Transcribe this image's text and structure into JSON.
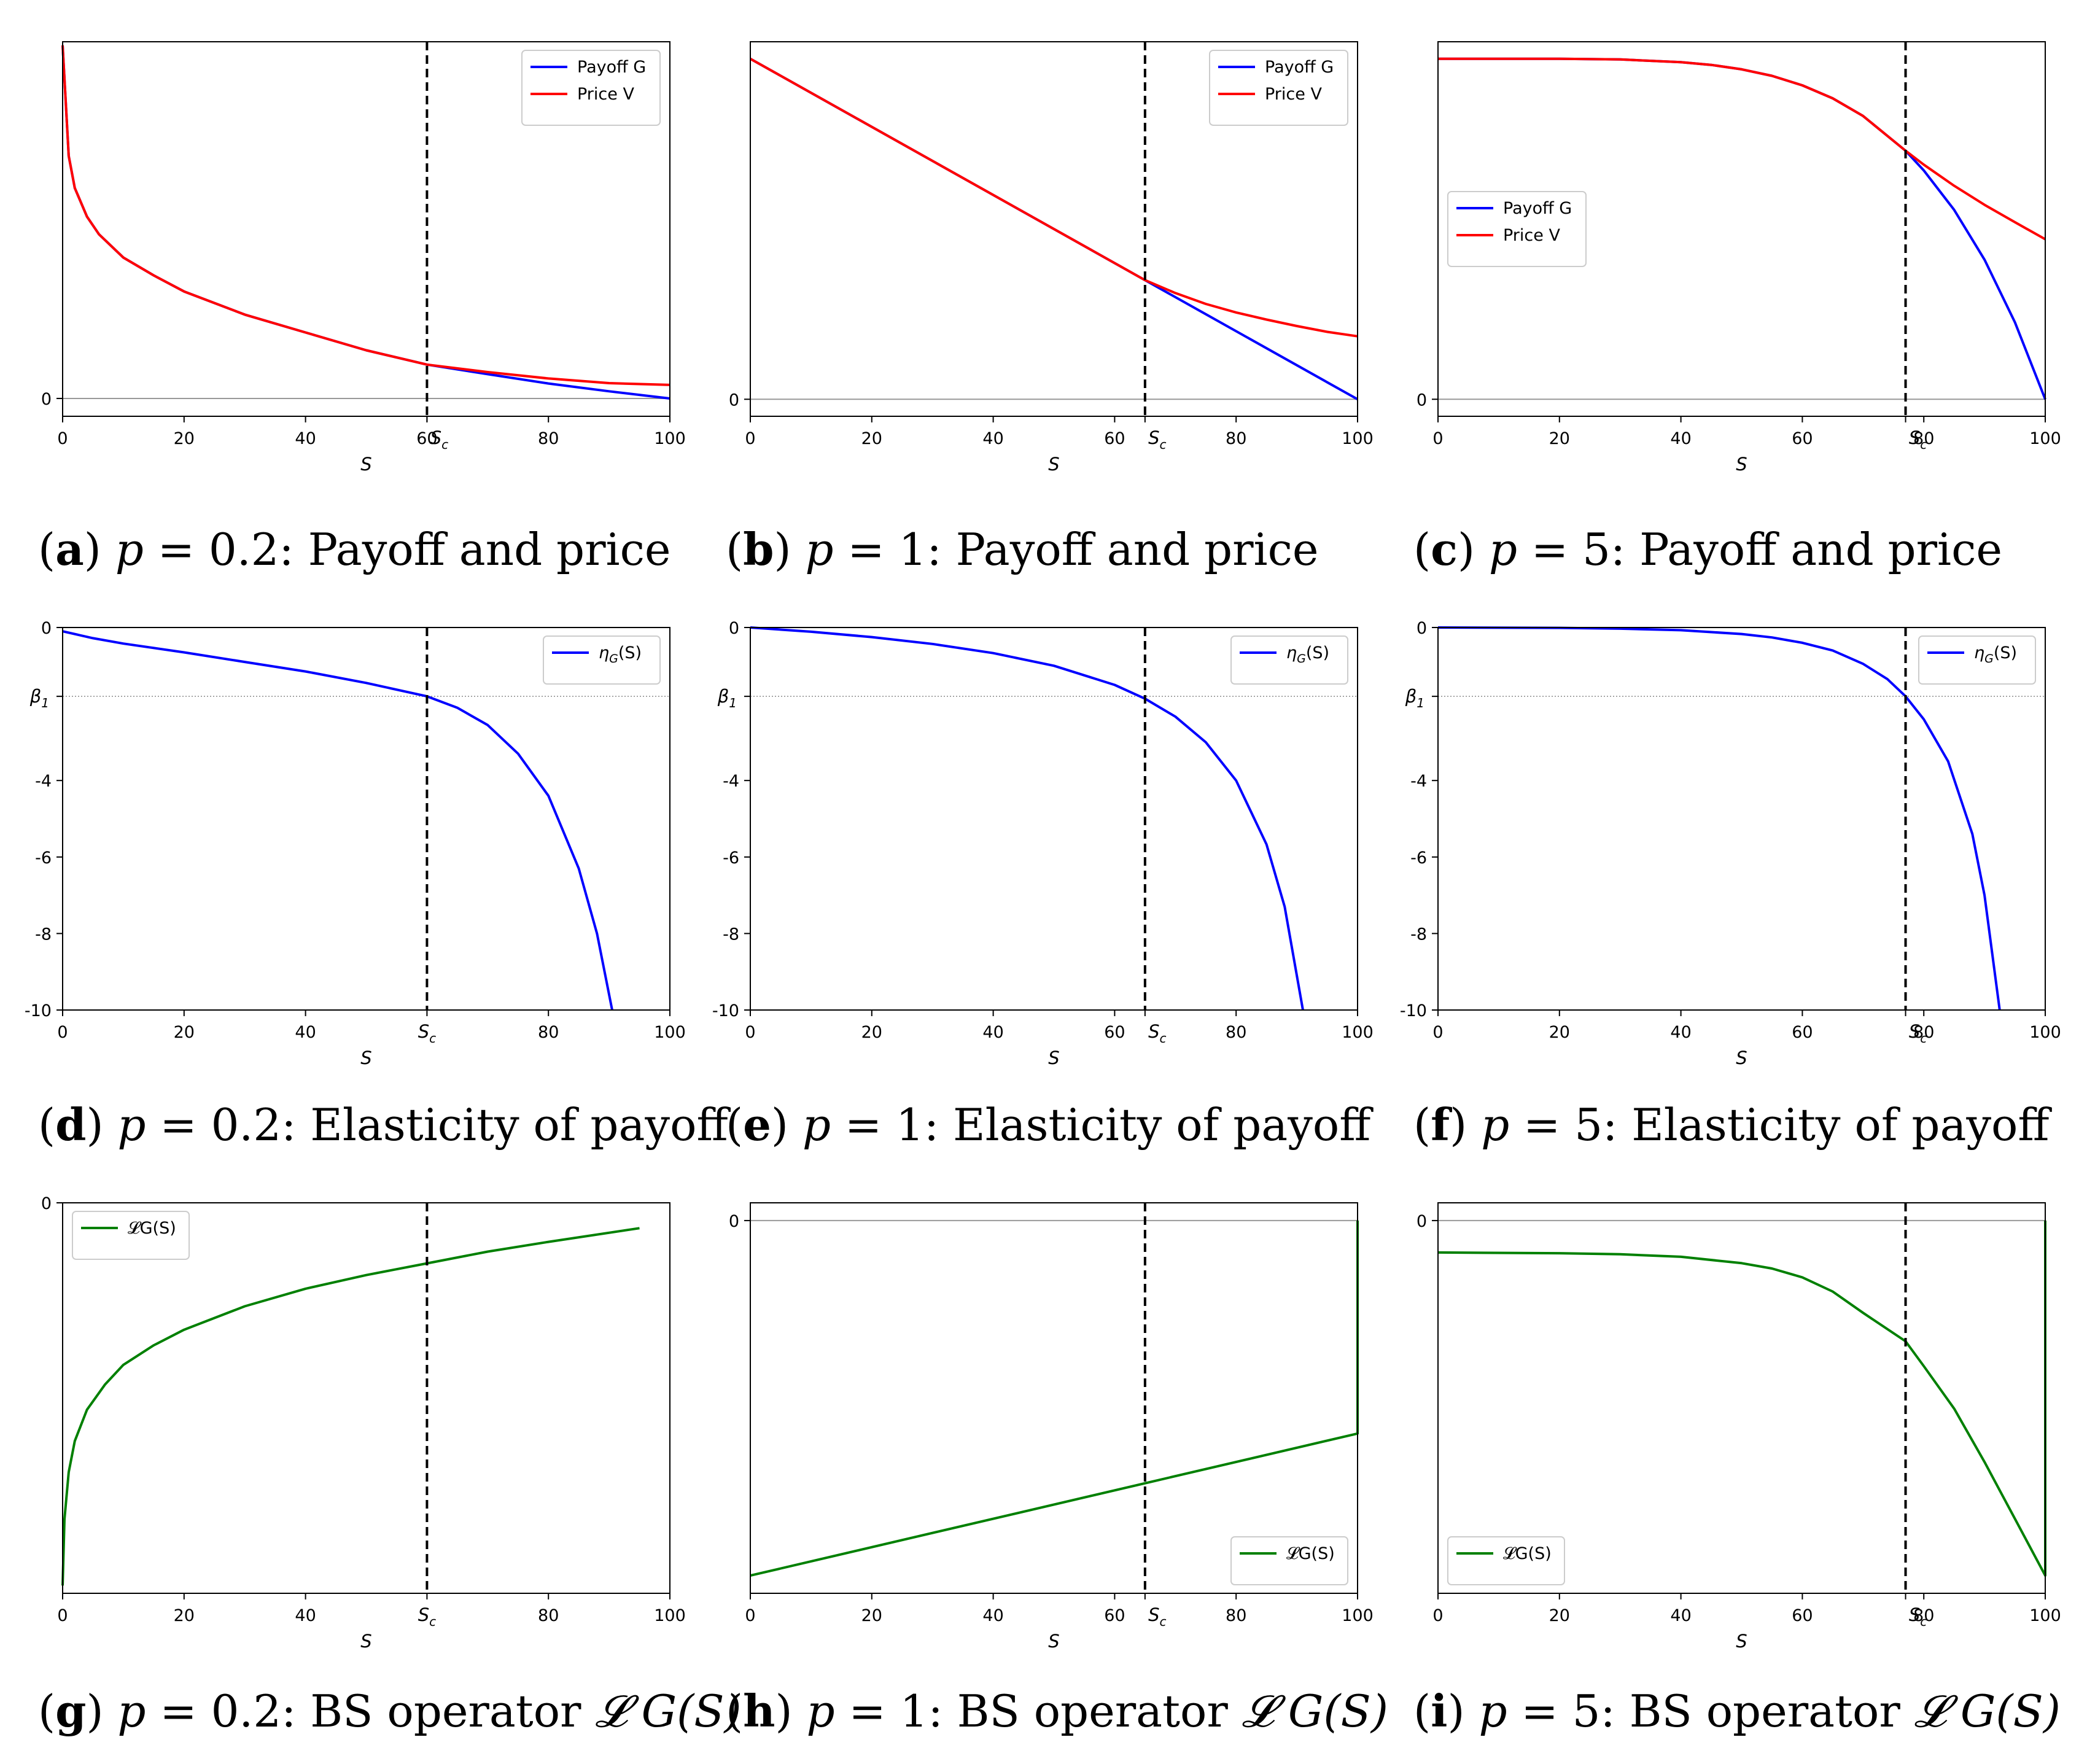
{
  "chart_data": [
    {
      "id": "a",
      "type": "line",
      "caption": {
        "letter": "a",
        "p": "0.2",
        "title": "Payoff and price"
      },
      "xlabel": "S",
      "xlim": [
        0,
        100
      ],
      "xticks": [
        "0",
        "20",
        "40",
        "60",
        "80",
        "100"
      ],
      "critical_label": "S_c",
      "critical_x": 60,
      "ylim": [
        -0.5,
        10
      ],
      "yticks": [
        {
          "label": "0",
          "value": 0
        }
      ],
      "hline": 0,
      "legend_loc": "upper right",
      "series": [
        {
          "name": "Payoff G",
          "color": "#0000ff",
          "x": [
            0,
            1,
            2,
            4,
            6,
            10,
            15,
            20,
            30,
            40,
            50,
            60,
            70,
            80,
            90,
            100
          ],
          "y": [
            9.9,
            6.8,
            5.9,
            5.1,
            4.6,
            3.95,
            3.45,
            3.0,
            2.35,
            1.85,
            1.35,
            0.95,
            0.68,
            0.42,
            0.2,
            0.0
          ]
        },
        {
          "name": "Price V",
          "color": "#ff0000",
          "x": [
            0,
            1,
            2,
            4,
            6,
            10,
            15,
            20,
            30,
            40,
            50,
            60,
            70,
            80,
            90,
            100
          ],
          "y": [
            9.9,
            6.8,
            5.9,
            5.1,
            4.6,
            3.95,
            3.45,
            3.0,
            2.35,
            1.85,
            1.35,
            0.95,
            0.74,
            0.56,
            0.43,
            0.38
          ]
        }
      ]
    },
    {
      "id": "b",
      "type": "line",
      "caption": {
        "letter": "b",
        "p": "1",
        "title": "Payoff and price"
      },
      "xlabel": "S",
      "xlim": [
        0,
        100
      ],
      "xticks": [
        "0",
        "20",
        "40",
        "60",
        "80",
        "100"
      ],
      "critical_label": "S_c",
      "critical_x": 65,
      "ylim": [
        -5,
        105
      ],
      "yticks": [
        {
          "label": "0",
          "value": 0
        }
      ],
      "hline": 0,
      "legend_loc": "upper right",
      "series": [
        {
          "name": "Payoff G",
          "color": "#0000ff",
          "x": [
            0,
            65,
            100
          ],
          "y": [
            100,
            35,
            0
          ]
        },
        {
          "name": "Price V",
          "color": "#ff0000",
          "x": [
            0,
            20,
            40,
            65,
            70,
            75,
            80,
            85,
            90,
            95,
            100
          ],
          "y": [
            100,
            80,
            60,
            35,
            31.2,
            28.0,
            25.5,
            23.4,
            21.5,
            19.8,
            18.5
          ]
        }
      ]
    },
    {
      "id": "c",
      "type": "line",
      "caption": {
        "letter": "c",
        "p": "5",
        "title": "Payoff and price"
      },
      "xlabel": "S",
      "xlim": [
        0,
        100
      ],
      "xticks": [
        "0",
        "20",
        "40",
        "60",
        "80",
        "100"
      ],
      "critical_label": "S_c",
      "critical_x": 77,
      "ylim": [
        -0.05,
        1.05
      ],
      "yticks": [
        {
          "label": "0",
          "value": 0
        }
      ],
      "hline": 0,
      "legend_loc": "center left",
      "series": [
        {
          "name": "Payoff G",
          "color": "#0000ff",
          "x": [
            0,
            10,
            20,
            30,
            40,
            45,
            50,
            55,
            60,
            65,
            70,
            77,
            80,
            85,
            90,
            95,
            100
          ],
          "y": [
            1.0,
            1.0,
            1.0,
            0.998,
            0.99,
            0.982,
            0.969,
            0.95,
            0.922,
            0.884,
            0.832,
            0.73,
            0.672,
            0.556,
            0.41,
            0.226,
            0.0
          ]
        },
        {
          "name": "Price V",
          "color": "#ff0000",
          "x": [
            0,
            10,
            20,
            30,
            40,
            45,
            50,
            55,
            60,
            65,
            70,
            77,
            80,
            85,
            90,
            95,
            100
          ],
          "y": [
            1.0,
            1.0,
            1.0,
            0.998,
            0.99,
            0.982,
            0.969,
            0.95,
            0.922,
            0.884,
            0.832,
            0.73,
            0.689,
            0.627,
            0.571,
            0.52,
            0.47
          ]
        }
      ]
    },
    {
      "id": "d",
      "type": "line",
      "caption": {
        "letter": "d",
        "p": "0.2",
        "title": "Elasticity of payoff"
      },
      "xlabel": "S",
      "xlim": [
        0,
        100
      ],
      "xticks": [
        "0",
        "20",
        "40",
        "S_c",
        "80",
        "100"
      ],
      "critical_label": "S_c",
      "critical_x": 60,
      "ylim": [
        -10,
        0
      ],
      "yticks": [
        {
          "label": "0",
          "value": 0
        },
        {
          "label": "β_1",
          "value": -1.8
        },
        {
          "label": "-4",
          "value": -4
        },
        {
          "label": "-6",
          "value": -6
        },
        {
          "label": "-8",
          "value": -8
        },
        {
          "label": "-10",
          "value": -10
        }
      ],
      "hline_dotted": -1.8,
      "legend_loc": "upper right",
      "series": [
        {
          "name": "η_G(S)",
          "color": "#0000ff",
          "x": [
            0,
            5,
            10,
            20,
            30,
            40,
            50,
            60,
            65,
            70,
            75,
            80,
            85,
            88,
            90.5
          ],
          "y": [
            -0.1,
            -0.28,
            -0.42,
            -0.65,
            -0.9,
            -1.15,
            -1.45,
            -1.8,
            -2.1,
            -2.55,
            -3.3,
            -4.4,
            -6.3,
            -8.0,
            -10.0
          ]
        }
      ]
    },
    {
      "id": "e",
      "type": "line",
      "caption": {
        "letter": "e",
        "p": "1",
        "title": "Elasticity of payoff"
      },
      "xlabel": "S",
      "xlim": [
        0,
        100
      ],
      "xticks": [
        "0",
        "20",
        "40",
        "60",
        "80",
        "100"
      ],
      "critical_label": "S_c",
      "critical_x": 65,
      "ylim": [
        -10,
        0
      ],
      "yticks": [
        {
          "label": "0",
          "value": 0
        },
        {
          "label": "β_1",
          "value": -1.8
        },
        {
          "label": "-4",
          "value": -4
        },
        {
          "label": "-6",
          "value": -6
        },
        {
          "label": "-8",
          "value": -8
        },
        {
          "label": "-10",
          "value": -10
        }
      ],
      "hline_dotted": -1.8,
      "legend_loc": "upper right",
      "series": [
        {
          "name": "η_G(S)",
          "color": "#0000ff",
          "x": [
            0,
            10,
            20,
            30,
            40,
            50,
            60,
            65,
            70,
            75,
            80,
            85,
            88,
            91
          ],
          "y": [
            0,
            -0.11,
            -0.25,
            -0.43,
            -0.67,
            -1.0,
            -1.5,
            -1.86,
            -2.33,
            -3.0,
            -4.0,
            -5.67,
            -7.3,
            -10.0
          ]
        }
      ]
    },
    {
      "id": "f",
      "type": "line",
      "caption": {
        "letter": "f",
        "p": "5",
        "title": "Elasticity of payoff"
      },
      "xlabel": "S",
      "xlim": [
        0,
        100
      ],
      "xticks": [
        "0",
        "20",
        "40",
        "60",
        "80",
        "100"
      ],
      "critical_label": "S_c",
      "critical_x": 77,
      "ylim": [
        -10,
        0
      ],
      "yticks": [
        {
          "label": "0",
          "value": 0
        },
        {
          "label": "β_1",
          "value": -1.8
        },
        {
          "label": "-4",
          "value": -4
        },
        {
          "label": "-6",
          "value": -6
        },
        {
          "label": "-8",
          "value": -8
        },
        {
          "label": "-10",
          "value": -10
        }
      ],
      "hline_dotted": -1.8,
      "legend_loc": "upper right",
      "series": [
        {
          "name": "η_G(S)",
          "color": "#0000ff",
          "x": [
            0,
            20,
            30,
            40,
            50,
            55,
            60,
            65,
            70,
            74,
            77,
            80,
            84,
            88,
            90,
            92.5
          ],
          "y": [
            0,
            -0.01,
            -0.03,
            -0.07,
            -0.17,
            -0.26,
            -0.4,
            -0.6,
            -0.95,
            -1.35,
            -1.8,
            -2.4,
            -3.5,
            -5.4,
            -7.0,
            -10.0
          ]
        }
      ]
    },
    {
      "id": "g",
      "type": "line",
      "caption": {
        "letter": "g",
        "p": "0.2",
        "title": "BS operator",
        "op": "𝓛 G(S)"
      },
      "xlabel": "S",
      "xlim": [
        0,
        100
      ],
      "xticks": [
        "0",
        "20",
        "40",
        "S_c",
        "80",
        "100"
      ],
      "critical_label": "S_c",
      "critical_x": 60,
      "ylim": [
        -10,
        0
      ],
      "yticks": [
        {
          "label": "0",
          "value": 0
        }
      ],
      "legend_loc": "upper left",
      "series": [
        {
          "name": "𝓛G(S)",
          "color": "#008000",
          "x": [
            0,
            0.3,
            1,
            2,
            4,
            7,
            10,
            15,
            20,
            30,
            40,
            50,
            60,
            70,
            80,
            95
          ],
          "y": [
            -9.8,
            -8.1,
            -6.9,
            -6.1,
            -5.3,
            -4.65,
            -4.15,
            -3.65,
            -3.25,
            -2.65,
            -2.2,
            -1.85,
            -1.55,
            -1.25,
            -1.0,
            -0.65
          ]
        }
      ]
    },
    {
      "id": "h",
      "type": "line",
      "caption": {
        "letter": "h",
        "p": "1",
        "title": "BS operator",
        "op": "𝓛 G(S)"
      },
      "xlabel": "S",
      "xlim": [
        0,
        100
      ],
      "xticks": [
        "0",
        "20",
        "40",
        "60",
        "80",
        "100"
      ],
      "critical_label": "S_c",
      "critical_x": 65,
      "ylim": [
        -10.5,
        0.5
      ],
      "yticks": [
        {
          "label": "0",
          "value": 0
        }
      ],
      "hline": 0,
      "legend_loc": "lower right",
      "series": [
        {
          "name": "𝓛G(S)",
          "color": "#008000",
          "x": [
            0,
            100,
            100
          ],
          "y": [
            -10.0,
            -6.0,
            0.0
          ]
        }
      ]
    },
    {
      "id": "i",
      "type": "line",
      "caption": {
        "letter": "i",
        "p": "5",
        "title": "BS operator",
        "op": "𝓛 G(S)"
      },
      "xlabel": "S",
      "xlim": [
        0,
        100
      ],
      "xticks": [
        "0",
        "20",
        "40",
        "60",
        "80",
        "100"
      ],
      "critical_label": "S_c",
      "critical_x": 77,
      "ylim": [
        -10.5,
        0.5
      ],
      "yticks": [
        {
          "label": "0",
          "value": 0
        }
      ],
      "hline": 0,
      "legend_loc": "lower left",
      "series": [
        {
          "name": "𝓛G(S)",
          "color": "#008000",
          "x": [
            0,
            20,
            30,
            40,
            50,
            55,
            60,
            65,
            70,
            77,
            80,
            85,
            90,
            95,
            100,
            100
          ],
          "y": [
            -0.9,
            -0.92,
            -0.95,
            -1.02,
            -1.2,
            -1.35,
            -1.6,
            -2.0,
            -2.6,
            -3.4,
            -4.1,
            -5.3,
            -6.8,
            -8.4,
            -10.0,
            0.0
          ]
        }
      ]
    }
  ]
}
